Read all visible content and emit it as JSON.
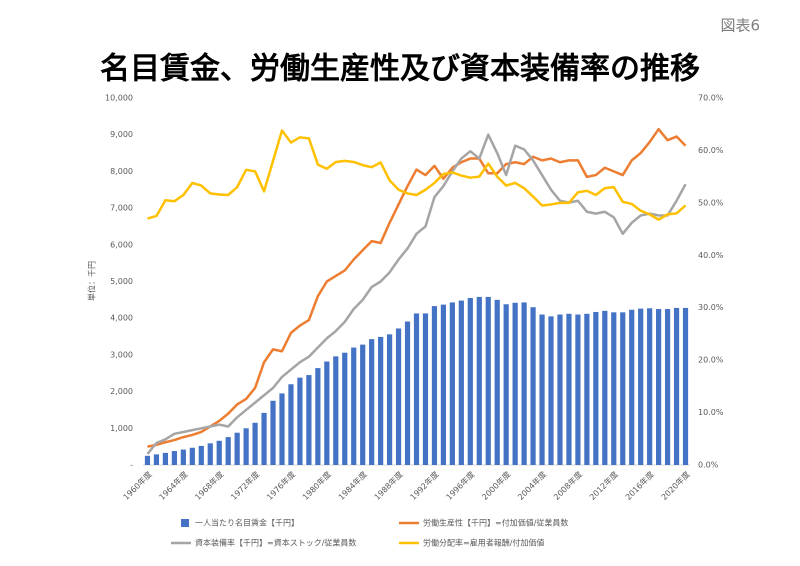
{
  "chart_data": {
    "type": "bar_line",
    "badge": "図表6",
    "title": "名目賃金、労働生産性及び資本装備率の推移",
    "ylabel": "単位：千円",
    "categories": [
      "1960年度",
      null,
      null,
      null,
      "1964年度",
      null,
      null,
      null,
      "1968年度",
      null,
      null,
      null,
      "1972年度",
      null,
      null,
      null,
      "1976年度",
      null,
      null,
      null,
      "1980年度",
      null,
      null,
      null,
      "1984年度",
      null,
      null,
      null,
      "1988年度",
      null,
      null,
      null,
      "1992年度",
      null,
      null,
      null,
      "1996年度",
      null,
      null,
      null,
      "2000年度",
      null,
      null,
      null,
      "2004年度",
      null,
      null,
      null,
      "2008年度",
      null,
      null,
      null,
      "2012年度",
      null,
      null,
      null,
      "2016年度",
      null,
      null,
      null,
      "2020年度"
    ],
    "ylim": [
      0,
      10000
    ],
    "yticks": [
      {
        "value": 0,
        "label": "-"
      },
      {
        "value": 1000,
        "label": "1,000"
      },
      {
        "value": 2000,
        "label": "2,000"
      },
      {
        "value": 3000,
        "label": "3,000"
      },
      {
        "value": 4000,
        "label": "4,000"
      },
      {
        "value": 5000,
        "label": "5,000"
      },
      {
        "value": 6000,
        "label": "6,000"
      },
      {
        "value": 7000,
        "label": "7,000"
      },
      {
        "value": 8000,
        "label": "8,000"
      },
      {
        "value": 9000,
        "label": "9,000"
      },
      {
        "value": 10000,
        "label": "10,000"
      }
    ],
    "y2lim": [
      0,
      70
    ],
    "y2ticks": [
      {
        "value": 0,
        "label": "0.0%"
      },
      {
        "value": 10,
        "label": "10.0%"
      },
      {
        "value": 20,
        "label": "20.0%"
      },
      {
        "value": 30,
        "label": "30.0%"
      },
      {
        "value": 40,
        "label": "40.0%"
      },
      {
        "value": 50,
        "label": "50.0%"
      },
      {
        "value": 60,
        "label": "60.0%"
      },
      {
        "value": 70,
        "label": "70.0%"
      }
    ],
    "series": [
      {
        "name": "一人当たり名目賃金【千円】",
        "type": "bar",
        "color": "#4472c4",
        "values": [
          250,
          290,
          330,
          380,
          420,
          470,
          520,
          590,
          660,
          760,
          880,
          1000,
          1150,
          1420,
          1750,
          1950,
          2200,
          2380,
          2450,
          2640,
          2820,
          2960,
          3060,
          3200,
          3280,
          3430,
          3490,
          3560,
          3720,
          3910,
          4130,
          4130,
          4330,
          4370,
          4430,
          4480,
          4550,
          4580,
          4580,
          4500,
          4380,
          4420,
          4430,
          4300,
          4100,
          4050,
          4100,
          4120,
          4100,
          4120,
          4170,
          4200,
          4160,
          4160,
          4230,
          4260,
          4270,
          4250,
          4250,
          4280,
          4280
        ]
      },
      {
        "name": "労働生産性【千円】=付加価値/従業員数",
        "type": "line",
        "color": "#ed7d31",
        "values": [
          500,
          550,
          620,
          680,
          760,
          820,
          900,
          1050,
          1200,
          1400,
          1650,
          1800,
          2100,
          2800,
          3150,
          3100,
          3600,
          3800,
          3950,
          4600,
          5000,
          5150,
          5300,
          5600,
          5850,
          6100,
          6050,
          6600,
          7100,
          7600,
          8050,
          7900,
          8150,
          7800,
          8100,
          8250,
          8350,
          8350,
          7950,
          7950,
          8200,
          8250,
          8200,
          8400,
          8300,
          8350,
          8250,
          8300,
          8300,
          7850,
          7900,
          8100,
          8000,
          7900,
          8300,
          8500,
          8800,
          9150,
          8850,
          8950,
          8700
        ]
      },
      {
        "name": "資本装備率【千円】=資本ストック/従業員数",
        "type": "line",
        "color": "#a5a5a5",
        "values": [
          300,
          600,
          700,
          850,
          900,
          950,
          1000,
          1050,
          1100,
          1050,
          1300,
          1500,
          1700,
          1900,
          2100,
          2400,
          2600,
          2800,
          2950,
          3200,
          3450,
          3650,
          3900,
          4250,
          4500,
          4850,
          5000,
          5250,
          5600,
          5900,
          6300,
          6500,
          7300,
          7600,
          8000,
          8350,
          8550,
          8350,
          9000,
          8500,
          7900,
          8700,
          8600,
          8300,
          7900,
          7500,
          7200,
          7150,
          7200,
          6900,
          6850,
          6900,
          6750,
          6300,
          6600,
          6800,
          6850,
          6800,
          6800,
          7200,
          7650
        ]
      },
      {
        "name": "労働分配率=雇用者報酬/付加価値",
        "type": "line",
        "axis": "y2",
        "color": "#ffc000",
        "values": [
          47,
          47.5,
          50.5,
          50.3,
          51.5,
          53.8,
          53.3,
          51.8,
          51.6,
          51.5,
          53,
          56.3,
          56,
          52.2,
          58,
          63.8,
          61.5,
          62.5,
          62.3,
          57.3,
          56.5,
          57.8,
          58,
          57.8,
          57.2,
          56.8,
          57.7,
          54.3,
          52.5,
          51.8,
          51.5,
          52.5,
          53.8,
          55.5,
          55.8,
          55.2,
          54.8,
          55,
          57.5,
          55,
          53.3,
          53.8,
          52.8,
          51.2,
          49.5,
          49.7,
          50,
          50,
          52,
          52.3,
          51.5,
          52.8,
          53,
          50.2,
          49.8,
          48.5,
          47.8,
          46.8,
          47.8,
          48,
          49.5
        ]
      }
    ]
  }
}
